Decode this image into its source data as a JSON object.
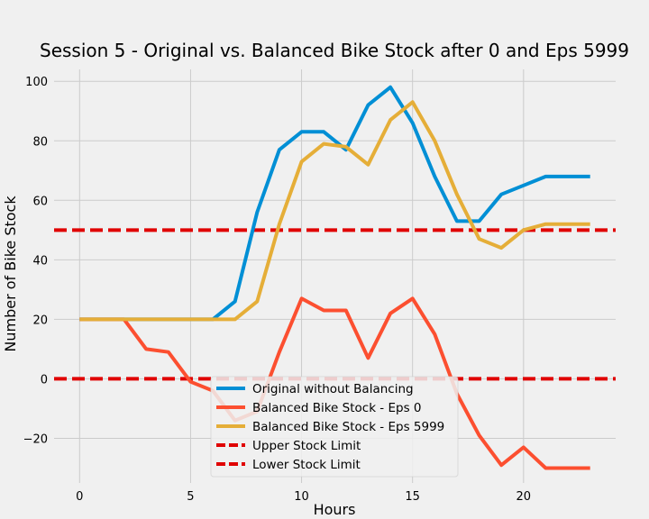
{
  "chart_data": {
    "type": "line",
    "title": "Session 5 - Original vs. Balanced Bike Stock after 0 and Eps 5999",
    "xlabel": "Hours",
    "ylabel": "Number of Bike Stock",
    "xlim": [
      -1.15,
      24.15
    ],
    "ylim": [
      -35,
      104
    ],
    "xticks": [
      0,
      5,
      10,
      15,
      20
    ],
    "yticks": [
      -20,
      0,
      20,
      40,
      60,
      80,
      100
    ],
    "grid": true,
    "legend_position": "lower-center",
    "x": [
      0,
      1,
      2,
      3,
      4,
      5,
      6,
      7,
      8,
      9,
      10,
      11,
      12,
      13,
      14,
      15,
      16,
      17,
      18,
      19,
      20,
      21,
      22,
      23
    ],
    "series": [
      {
        "name": "Original without Balancing",
        "color": "#008fd5",
        "style": "solid",
        "values": [
          20,
          20,
          20,
          20,
          20,
          20,
          20,
          26,
          56,
          77,
          83,
          83,
          77,
          92,
          98,
          86,
          68,
          53,
          53,
          62,
          65,
          68,
          68,
          68
        ]
      },
      {
        "name": "Balanced Bike Stock - Eps 0",
        "color": "#fc4f30",
        "style": "solid",
        "values": [
          20,
          20,
          20,
          10,
          9,
          -1,
          -4,
          -14,
          -11,
          9,
          27,
          23,
          23,
          7,
          22,
          27,
          15,
          -5,
          -19,
          -29,
          -23,
          -30,
          -30,
          -30
        ]
      },
      {
        "name": "Balanced Bike Stock - Eps 5999",
        "color": "#e5ae38",
        "style": "solid",
        "values": [
          20,
          20,
          20,
          20,
          20,
          20,
          20,
          20,
          26,
          52,
          73,
          79,
          78,
          72,
          87,
          93,
          80,
          62,
          47,
          44,
          50,
          52,
          52,
          52
        ]
      }
    ],
    "reference_lines": [
      {
        "name": "Upper Stock Limit",
        "y": 50,
        "color": "#e00000",
        "style": "dashed"
      },
      {
        "name": "Lower Stock Limit",
        "y": 0,
        "color": "#e00000",
        "style": "dashed"
      }
    ]
  }
}
